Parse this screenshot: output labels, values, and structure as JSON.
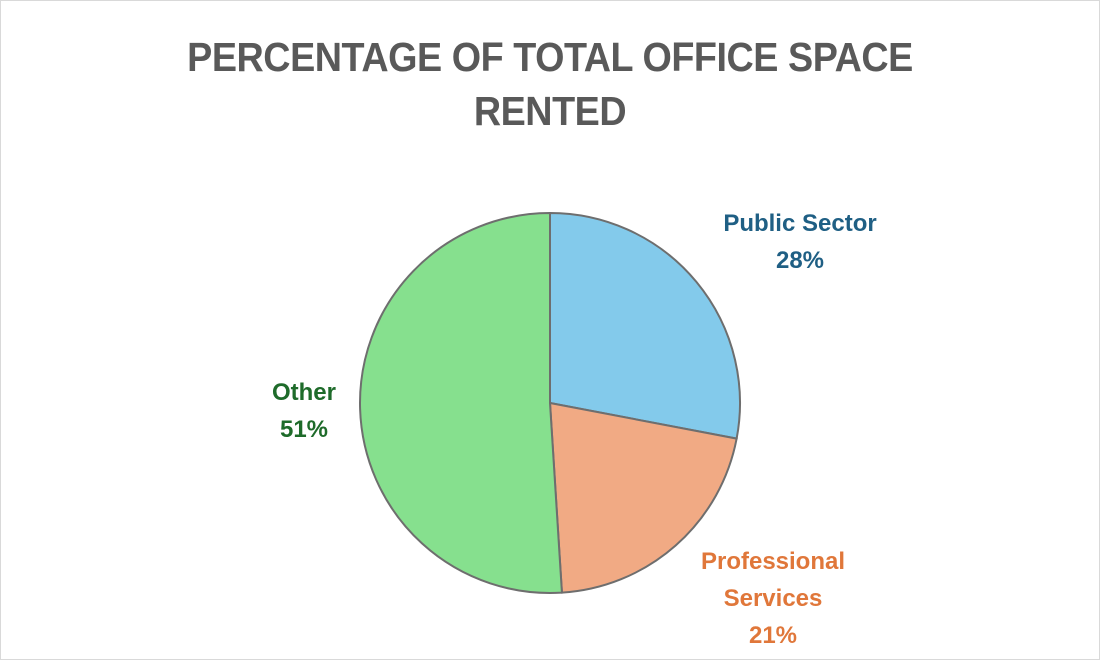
{
  "chart_data": {
    "type": "pie",
    "title": "PERCENTAGE OF TOTAL OFFICE SPACE RENTED",
    "title_lines": [
      "PERCENTAGE OF TOTAL OFFICE SPACE",
      "RENTED"
    ],
    "categories": [
      "Public Sector",
      "Professional Services",
      "Other"
    ],
    "values": [
      28,
      21,
      51
    ],
    "unit": "%",
    "start_angle": "12 o'clock, clockwise",
    "colors": [
      "#83CAEB",
      "#F1AA84",
      "#86E08E"
    ],
    "label_colors": [
      "#1F5F84",
      "#E0773A",
      "#1E6B2A"
    ],
    "slice_border": "#6E6E6E",
    "legend": "none (data labels)",
    "labels": [
      {
        "name_lines": [
          "Public Sector"
        ],
        "value": "28%"
      },
      {
        "name_lines": [
          "Professional",
          "Services"
        ],
        "value": "21%"
      },
      {
        "name_lines": [
          "Other"
        ],
        "value": "51%"
      }
    ]
  }
}
